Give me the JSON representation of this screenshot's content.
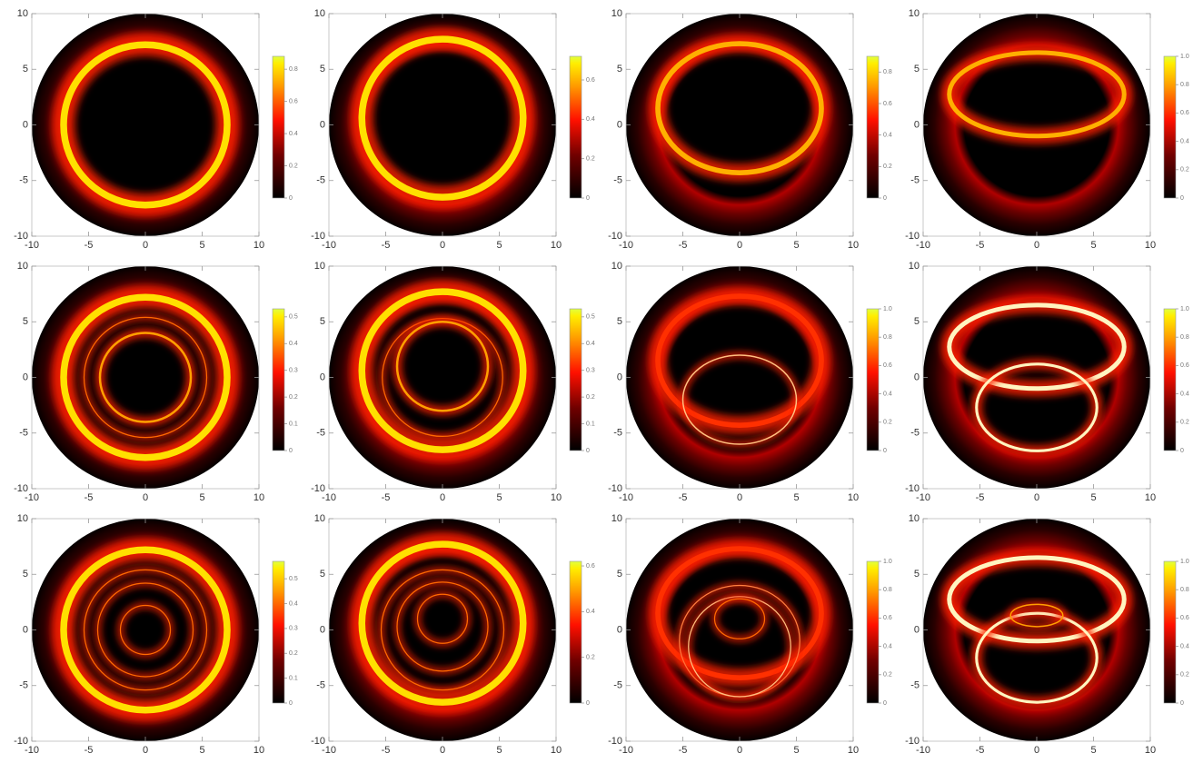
{
  "chart_data": [
    {
      "type": "density",
      "xlim": [
        -10,
        10
      ],
      "ylim": [
        -10,
        10
      ],
      "xticks": [
        -10,
        -5,
        0,
        5,
        10
      ],
      "yticks": [
        -10,
        -5,
        0,
        5,
        10
      ],
      "clim": [
        0,
        0.88
      ],
      "cticks": [
        0,
        0.2,
        0.4,
        0.6,
        0.8
      ],
      "rings": [
        {
          "cy": 0,
          "rx": 7.2,
          "ry": 7.2,
          "width": 0.6,
          "color": "#ffe000"
        }
      ]
    },
    {
      "type": "density",
      "xlim": [
        -10,
        10
      ],
      "ylim": [
        -10,
        10
      ],
      "xticks": [
        -10,
        -5,
        0,
        5,
        10
      ],
      "yticks": [
        -10,
        -5,
        0,
        5,
        10
      ],
      "clim": [
        0,
        0.72
      ],
      "cticks": [
        0,
        0.2,
        0.4,
        0.6
      ],
      "rings": [
        {
          "cy": 0.6,
          "rx": 7.1,
          "ry": 7.1,
          "width": 0.6,
          "color": "#ffe000"
        }
      ]
    },
    {
      "type": "density",
      "xlim": [
        -10,
        10
      ],
      "ylim": [
        -10,
        10
      ],
      "xticks": [
        -10,
        -5,
        0,
        5,
        10
      ],
      "yticks": [
        -10,
        -5,
        0,
        5,
        10
      ],
      "clim": [
        0,
        0.9
      ],
      "cticks": [
        0,
        0.2,
        0.4,
        0.6,
        0.8
      ],
      "rings": [
        {
          "cy": 1.5,
          "rx": 7.2,
          "ry": 5.8,
          "width": 0.45,
          "color": "#ffb000"
        }
      ]
    },
    {
      "type": "density",
      "xlim": [
        -10,
        10
      ],
      "ylim": [
        -10,
        10
      ],
      "xticks": [
        -10,
        -5,
        0,
        5,
        10
      ],
      "yticks": [
        -10,
        -5,
        0,
        5,
        10
      ],
      "clim": [
        0,
        1
      ],
      "cticks": [
        0,
        0.2,
        0.4,
        0.6,
        0.8,
        {
          "value": 1,
          "label": "1.0"
        }
      ],
      "rings": [
        {
          "cy": 2.75,
          "rx": 7.7,
          "ry": 3.75,
          "width": 0.4,
          "color": "#ffb000"
        }
      ]
    },
    {
      "type": "density",
      "xlim": [
        -10,
        10
      ],
      "ylim": [
        -10,
        10
      ],
      "xticks": [
        -10,
        -5,
        0,
        5,
        10
      ],
      "yticks": [
        -10,
        -5,
        0,
        5,
        10
      ],
      "clim": [
        0,
        0.53
      ],
      "cticks": [
        0,
        0.1,
        0.2,
        0.3,
        0.4,
        0.5
      ],
      "rings": [
        {
          "cy": 0,
          "rx": 7.2,
          "ry": 7.2,
          "width": 0.6,
          "color": "#ffe000"
        },
        {
          "cy": 0,
          "rx": 5.4,
          "ry": 5.4,
          "width": 0.1,
          "color": "#ff6a00"
        },
        {
          "cy": 0,
          "rx": 4,
          "ry": 4,
          "width": 0.2,
          "color": "#ffa000"
        }
      ]
    },
    {
      "type": "density",
      "xlim": [
        -10,
        10
      ],
      "ylim": [
        -10,
        10
      ],
      "xticks": [
        -10,
        -5,
        0,
        5,
        10
      ],
      "yticks": [
        -10,
        -5,
        0,
        5,
        10
      ],
      "clim": [
        0,
        0.53
      ],
      "cticks": [
        0,
        0.1,
        0.2,
        0.3,
        0.4,
        0.5
      ],
      "rings": [
        {
          "cy": 0.6,
          "rx": 7.1,
          "ry": 7.1,
          "width": 0.6,
          "color": "#ffe000"
        },
        {
          "cy": 0,
          "rx": 5.3,
          "ry": 5.3,
          "width": 0.1,
          "color": "#ff6a00"
        },
        {
          "cy": 1,
          "rx": 4,
          "ry": 4,
          "width": 0.2,
          "color": "#ffa000"
        }
      ]
    },
    {
      "type": "density",
      "xlim": [
        -10,
        10
      ],
      "ylim": [
        -10,
        10
      ],
      "xticks": [
        -10,
        -5,
        0,
        5,
        10
      ],
      "yticks": [
        -10,
        -5,
        0,
        5,
        10
      ],
      "clim": [
        0,
        1
      ],
      "cticks": [
        0,
        0.2,
        0.4,
        0.6,
        0.8,
        {
          "value": 1,
          "label": "1.0"
        }
      ],
      "rings": [
        {
          "cy": 1.5,
          "rx": 7.2,
          "ry": 5.8,
          "width": 0.45,
          "color": "#ff3000"
        },
        {
          "cy": -2,
          "rx": 5,
          "ry": 4,
          "width": 0.12,
          "color": "#ffc080"
        }
      ]
    },
    {
      "type": "density",
      "xlim": [
        -10,
        10
      ],
      "ylim": [
        -10,
        10
      ],
      "xticks": [
        -10,
        -5,
        0,
        5,
        10
      ],
      "yticks": [
        -10,
        -5,
        0,
        5,
        10
      ],
      "clim": [
        0,
        1
      ],
      "cticks": [
        0,
        0.2,
        0.4,
        0.6,
        0.8,
        {
          "value": 1,
          "label": "1.0"
        }
      ],
      "rings": [
        {
          "cy": 2.75,
          "rx": 7.7,
          "ry": 3.75,
          "width": 0.4,
          "color": "#fff4c0"
        },
        {
          "cy": -2.7,
          "rx": 5.3,
          "ry": 3.9,
          "width": 0.25,
          "color": "#fff4c0"
        }
      ]
    },
    {
      "type": "density",
      "xlim": [
        -10,
        10
      ],
      "ylim": [
        -10,
        10
      ],
      "xticks": [
        -10,
        -5,
        0,
        5,
        10
      ],
      "yticks": [
        -10,
        -5,
        0,
        5,
        10
      ],
      "clim": [
        0,
        0.57
      ],
      "cticks": [
        0,
        0.1,
        0.2,
        0.3,
        0.4,
        0.5
      ],
      "rings": [
        {
          "cy": 0,
          "rx": 7.2,
          "ry": 7.2,
          "width": 0.6,
          "color": "#ffe000"
        },
        {
          "cy": 0,
          "rx": 5.4,
          "ry": 5.4,
          "width": 0.1,
          "color": "#ff6a00"
        },
        {
          "cy": 0,
          "rx": 4.2,
          "ry": 4.2,
          "width": 0.1,
          "color": "#ff6a00"
        },
        {
          "cy": 0,
          "rx": 2.2,
          "ry": 2.2,
          "width": 0.1,
          "color": "#ff6a00"
        }
      ]
    },
    {
      "type": "density",
      "xlim": [
        -10,
        10
      ],
      "ylim": [
        -10,
        10
      ],
      "xticks": [
        -10,
        -5,
        0,
        5,
        10
      ],
      "yticks": [
        -10,
        -5,
        0,
        5,
        10
      ],
      "clim": [
        0,
        0.62
      ],
      "cticks": [
        0,
        0.2,
        0.4,
        0.6
      ],
      "rings": [
        {
          "cy": 0.6,
          "rx": 7.1,
          "ry": 7.1,
          "width": 0.6,
          "color": "#ffe000"
        },
        {
          "cy": 0,
          "rx": 5.4,
          "ry": 5.4,
          "width": 0.1,
          "color": "#ff6a00"
        },
        {
          "cy": 0.3,
          "rx": 4,
          "ry": 4,
          "width": 0.1,
          "color": "#ff6a00"
        },
        {
          "cy": 1,
          "rx": 2.2,
          "ry": 2.2,
          "width": 0.1,
          "color": "#ff6a00"
        }
      ]
    },
    {
      "type": "density",
      "xlim": [
        -10,
        10
      ],
      "ylim": [
        -10,
        10
      ],
      "xticks": [
        -10,
        -5,
        0,
        5,
        10
      ],
      "yticks": [
        -10,
        -5,
        0,
        5,
        10
      ],
      "clim": [
        0,
        1
      ],
      "cticks": [
        0,
        0.2,
        0.4,
        0.6,
        0.8,
        {
          "value": 1,
          "label": "1.0"
        }
      ],
      "rings": [
        {
          "cy": 1.5,
          "rx": 7.2,
          "ry": 5.8,
          "width": 0.45,
          "color": "#ff3000"
        },
        {
          "cy": -1,
          "rx": 5.3,
          "ry": 5,
          "width": 0.1,
          "color": "#ff8040"
        },
        {
          "cy": -1.5,
          "rx": 4.5,
          "ry": 4.5,
          "width": 0.1,
          "color": "#ffc080"
        },
        {
          "cy": 1,
          "rx": 2.2,
          "ry": 1.8,
          "width": 0.1,
          "color": "#ff6a00"
        }
      ]
    },
    {
      "type": "density",
      "xlim": [
        -10,
        10
      ],
      "ylim": [
        -10,
        10
      ],
      "xticks": [
        -10,
        -5,
        0,
        5,
        10
      ],
      "yticks": [
        -10,
        -5,
        0,
        5,
        10
      ],
      "clim": [
        0,
        1
      ],
      "cticks": [
        0,
        0.2,
        0.4,
        0.6,
        0.8,
        {
          "value": 1,
          "label": "1.0"
        }
      ],
      "rings": [
        {
          "cy": 2.75,
          "rx": 7.7,
          "ry": 3.75,
          "width": 0.4,
          "color": "#fff4c0"
        },
        {
          "cy": -2.5,
          "rx": 5.3,
          "ry": 4,
          "width": 0.25,
          "color": "#fff4c0"
        },
        {
          "cy": 1.3,
          "rx": 2.3,
          "ry": 1,
          "width": 0.12,
          "color": "#ffa000"
        }
      ]
    }
  ]
}
